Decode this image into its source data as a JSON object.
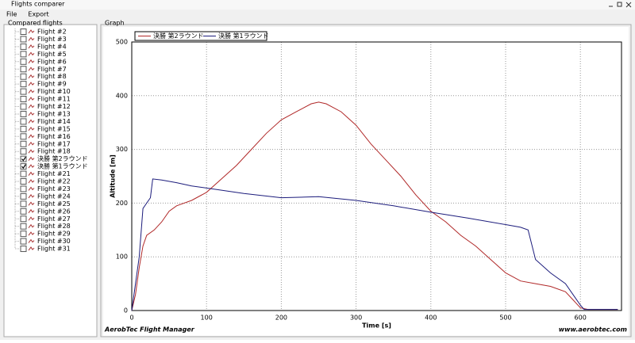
{
  "window": {
    "title": "Flights comparer"
  },
  "menu": [
    "File",
    "Export"
  ],
  "sidebar": {
    "title": "Compared flights",
    "items": [
      {
        "label": "Flight #2",
        "checked": false
      },
      {
        "label": "Flight #3",
        "checked": false
      },
      {
        "label": "Flight #4",
        "checked": false
      },
      {
        "label": "Flight #5",
        "checked": false
      },
      {
        "label": "Flight #6",
        "checked": false
      },
      {
        "label": "Flight #7",
        "checked": false
      },
      {
        "label": "Flight #8",
        "checked": false
      },
      {
        "label": "Flight #9",
        "checked": false
      },
      {
        "label": "Flight #10",
        "checked": false
      },
      {
        "label": "Flight #11",
        "checked": false
      },
      {
        "label": "Flight #12",
        "checked": false
      },
      {
        "label": "Flight #13",
        "checked": false
      },
      {
        "label": "Flight #14",
        "checked": false
      },
      {
        "label": "Flight #15",
        "checked": false
      },
      {
        "label": "Flight #16",
        "checked": false
      },
      {
        "label": "Flight #17",
        "checked": false
      },
      {
        "label": "Flight #18",
        "checked": false
      },
      {
        "label": "決勝 第2ラウンド",
        "checked": true
      },
      {
        "label": "決勝 第1ラウンド",
        "checked": true
      },
      {
        "label": "Flight #21",
        "checked": false
      },
      {
        "label": "Flight #22",
        "checked": false
      },
      {
        "label": "Flight #23",
        "checked": false
      },
      {
        "label": "Flight #24",
        "checked": false
      },
      {
        "label": "Flight #25",
        "checked": false
      },
      {
        "label": "Flight #26",
        "checked": false
      },
      {
        "label": "Flight #27",
        "checked": false
      },
      {
        "label": "Flight #28",
        "checked": false
      },
      {
        "label": "Flight #29",
        "checked": false
      },
      {
        "label": "Flight #30",
        "checked": false
      },
      {
        "label": "Flight #31",
        "checked": false
      }
    ]
  },
  "graph": {
    "title": "Graph",
    "footer_left": "AerobTec Flight Manager",
    "footer_right": "www.aerobtec.com"
  },
  "chart_data": {
    "type": "line",
    "x_label": "Time [s]",
    "y_label": "Altitude [m]",
    "xlim": [
      0,
      655
    ],
    "ylim": [
      0,
      500
    ],
    "xticks": [
      0,
      100,
      200,
      300,
      400,
      500,
      600
    ],
    "yticks": [
      0,
      100,
      200,
      300,
      400,
      500
    ],
    "grid": true,
    "legend": "top-left",
    "series": [
      {
        "name": "決勝 第2ラウンド",
        "color": "#b02828",
        "x": [
          0,
          5,
          10,
          15,
          20,
          30,
          40,
          50,
          60,
          80,
          100,
          120,
          140,
          160,
          180,
          200,
          220,
          240,
          250,
          260,
          280,
          300,
          320,
          340,
          360,
          380,
          400,
          420,
          440,
          460,
          480,
          500,
          520,
          540,
          560,
          580,
          590,
          600,
          610,
          650
        ],
        "values": [
          0,
          30,
          80,
          120,
          140,
          150,
          165,
          185,
          195,
          205,
          220,
          245,
          270,
          300,
          330,
          355,
          370,
          385,
          388,
          385,
          370,
          345,
          310,
          280,
          250,
          215,
          185,
          165,
          140,
          120,
          95,
          70,
          55,
          50,
          45,
          35,
          20,
          5,
          2,
          2
        ]
      },
      {
        "name": "決勝 第1ラウンド",
        "color": "#1c1c7c",
        "x": [
          0,
          10,
          15,
          20,
          25,
          28,
          40,
          60,
          80,
          100,
          150,
          200,
          250,
          300,
          350,
          400,
          450,
          500,
          520,
          530,
          540,
          560,
          580,
          590,
          600,
          605,
          650
        ],
        "values": [
          0,
          100,
          190,
          200,
          210,
          245,
          243,
          238,
          232,
          228,
          218,
          210,
          212,
          205,
          195,
          183,
          172,
          160,
          155,
          150,
          95,
          70,
          50,
          30,
          10,
          2,
          2
        ]
      }
    ]
  }
}
